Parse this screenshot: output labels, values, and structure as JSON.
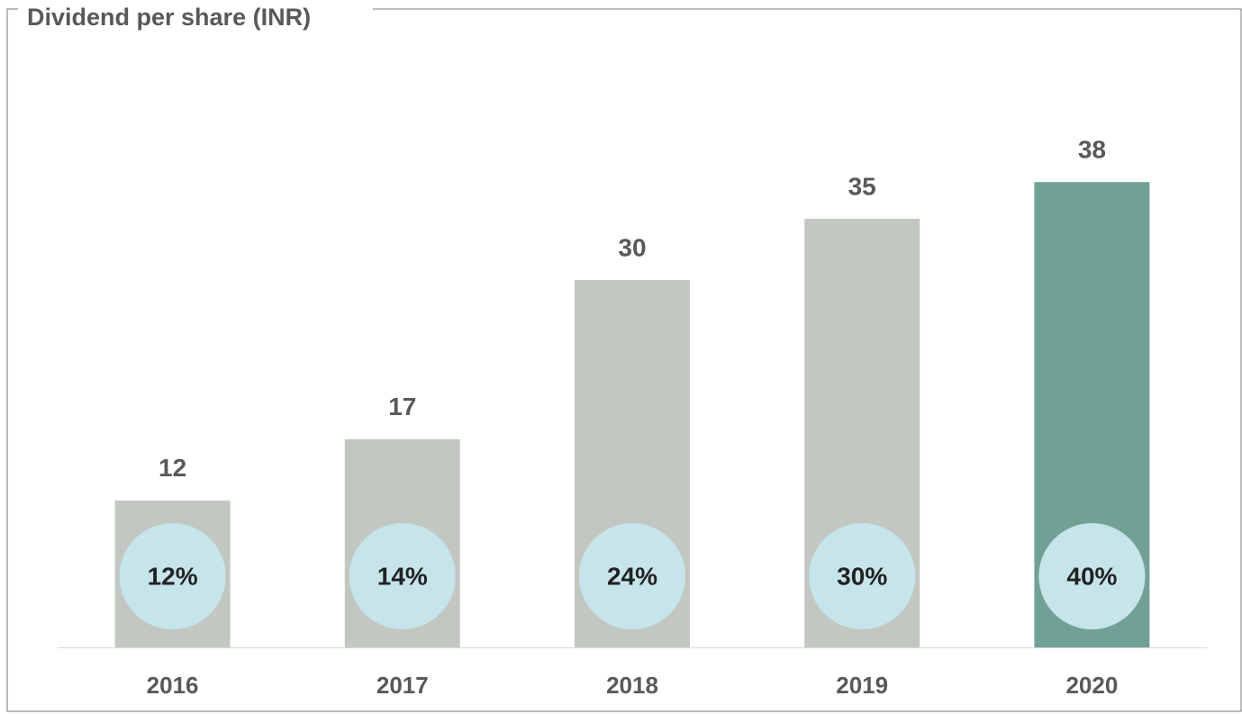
{
  "chart_data": {
    "type": "bar",
    "title": "Dividend per share (INR)",
    "categories": [
      "2016",
      "2017",
      "2018",
      "2019",
      "2020"
    ],
    "values": [
      12,
      17,
      30,
      35,
      38
    ],
    "colors": [
      "#c2c7c1",
      "#c2c7c1",
      "#c2c7c1",
      "#c2c7c1",
      "#71a195"
    ],
    "circle_values": [
      12,
      14,
      24,
      30,
      40
    ],
    "circle_value_labels": [
      "12%",
      "14%",
      "24%",
      "30%",
      "40%"
    ],
    "circle_color": "#c6e5ea",
    "ylim": [
      0,
      40
    ]
  }
}
